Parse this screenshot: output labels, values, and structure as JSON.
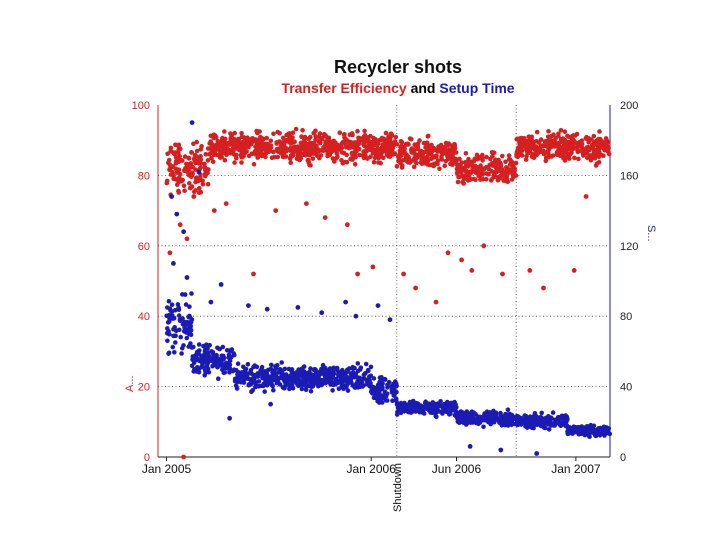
{
  "chart_data": {
    "type": "scatter",
    "title": "Recycler shots",
    "subtitle_parts": [
      {
        "text": "Transfer Efficiency",
        "color": "#d42020"
      },
      {
        "text": " and ",
        "color": "#000000"
      },
      {
        "text": "Setup Time",
        "color": "#1b1bb4"
      }
    ],
    "left_axis": {
      "label": "A...",
      "ticks": [
        "0",
        "20",
        "40",
        "60",
        "80",
        "100"
      ],
      "ylim": [
        0,
        100
      ],
      "color": "#d42020"
    },
    "right_axis": {
      "label": "S...",
      "ticks": [
        "0",
        "40",
        "80",
        "120",
        "160",
        "200"
      ],
      "ylim": [
        0,
        200
      ],
      "color": "#1b1bb4"
    },
    "x_axis": {
      "ticks": [
        {
          "label": "Jan 2005",
          "x": 0
        },
        {
          "label": "Jan 2006",
          "x": 12
        },
        {
          "label": "Jun 2006",
          "x": 17
        },
        {
          "label": "Jan 2007",
          "x": 24
        }
      ],
      "xlim": [
        -0.5,
        26
      ]
    },
    "vlines": [
      {
        "x": 13.5,
        "label": "Shutdown"
      },
      {
        "x": 20.5,
        "label": ""
      }
    ],
    "grid": true,
    "series": [
      {
        "axis": "left",
        "color": "#d42020",
        "segments": [
          {
            "x0": 0,
            "x1": 2.5,
            "center": 82,
            "spread": 10
          },
          {
            "x0": 2.5,
            "x1": 13.5,
            "center": 88,
            "spread": 6
          },
          {
            "x0": 13.5,
            "x1": 17,
            "center": 86,
            "spread": 6
          },
          {
            "x0": 17,
            "x1": 20.5,
            "center": 82,
            "spread": 6
          },
          {
            "x0": 20.5,
            "x1": 26,
            "center": 88,
            "spread": 6
          }
        ],
        "outliers": [
          [
            0.2,
            58
          ],
          [
            0.8,
            66
          ],
          [
            1.2,
            62
          ],
          [
            1.6,
            74
          ],
          [
            2.8,
            70
          ],
          [
            3.5,
            72
          ],
          [
            5.1,
            52
          ],
          [
            6.4,
            70
          ],
          [
            8.2,
            72
          ],
          [
            9.3,
            68
          ],
          [
            10.6,
            66
          ],
          [
            11.2,
            52
          ],
          [
            12.1,
            54
          ],
          [
            13.9,
            52
          ],
          [
            14.6,
            48
          ],
          [
            15.8,
            44
          ],
          [
            16.5,
            58
          ],
          [
            17.3,
            56
          ],
          [
            17.9,
            53
          ],
          [
            18.6,
            60
          ],
          [
            19.7,
            52
          ],
          [
            21.3,
            53
          ],
          [
            22.1,
            48
          ],
          [
            23.9,
            53
          ],
          [
            24.6,
            74
          ],
          [
            1.0,
            0
          ]
        ]
      },
      {
        "axis": "right",
        "color": "#1b1bb4",
        "segments": [
          {
            "x0": 0,
            "x1": 1.5,
            "center": 75,
            "spread": 22
          },
          {
            "x0": 1.5,
            "x1": 4,
            "center": 55,
            "spread": 12
          },
          {
            "x0": 4,
            "x1": 12,
            "center": 45,
            "spread": 10
          },
          {
            "x0": 12,
            "x1": 13.5,
            "center": 38,
            "spread": 10
          },
          {
            "x0": 13.5,
            "x1": 17,
            "center": 28,
            "spread": 6
          },
          {
            "x0": 17,
            "x1": 20.5,
            "center": 22,
            "spread": 6
          },
          {
            "x0": 20.5,
            "x1": 23.5,
            "center": 20,
            "spread": 6
          },
          {
            "x0": 23.5,
            "x1": 26,
            "center": 15,
            "spread": 4
          }
        ],
        "outliers": [
          [
            0.3,
            148
          ],
          [
            0.6,
            138
          ],
          [
            1.0,
            128
          ],
          [
            1.5,
            190
          ],
          [
            1.9,
            162
          ],
          [
            0.4,
            110
          ],
          [
            1.2,
            102
          ],
          [
            3.2,
            98
          ],
          [
            2.6,
            88
          ],
          [
            4.8,
            86
          ],
          [
            5.9,
            84
          ],
          [
            7.7,
            85
          ],
          [
            9.1,
            82
          ],
          [
            10.5,
            88
          ],
          [
            11.1,
            80
          ],
          [
            12.4,
            86
          ],
          [
            13.1,
            78
          ],
          [
            3.7,
            22
          ],
          [
            6.1,
            30
          ],
          [
            17.8,
            6
          ],
          [
            19.6,
            4
          ],
          [
            21.7,
            2
          ]
        ]
      }
    ]
  }
}
